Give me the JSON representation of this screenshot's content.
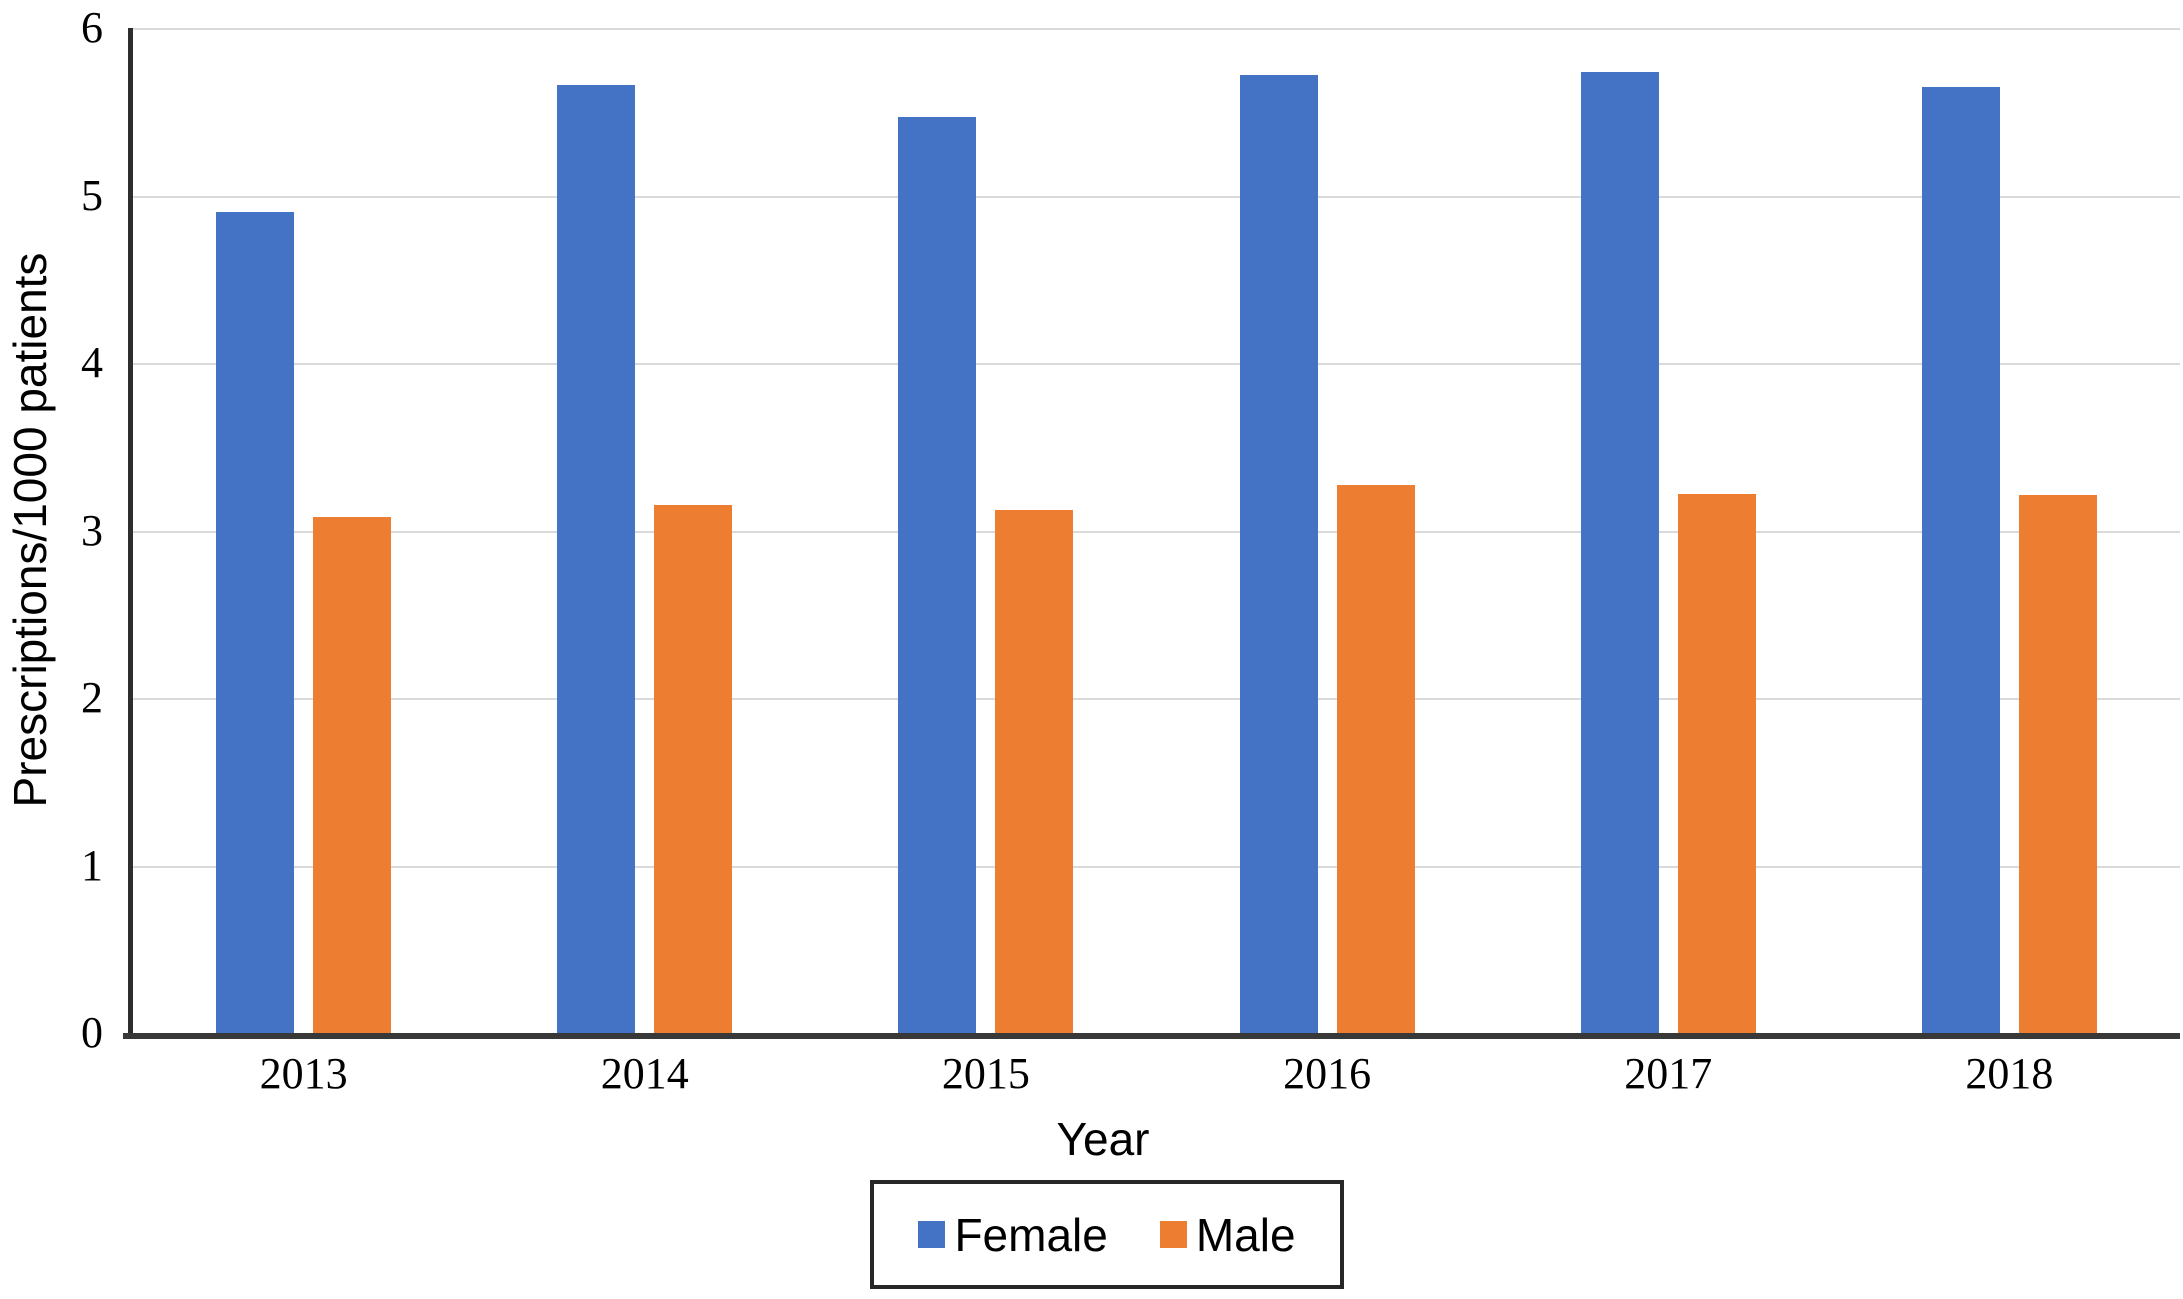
{
  "figure_label": "prescriptions-per-1000-patients-by-sex-and-year",
  "colors": {
    "female_bar": "#4472C4",
    "male_bar": "#ED7D31",
    "axis": "#383838",
    "gridline": "#D9D9D9",
    "legend_border": "#262626",
    "text": "#000000",
    "background": "#FFFFFF"
  },
  "chart_data": {
    "type": "bar",
    "title": "",
    "categories": [
      "2013",
      "2014",
      "2015",
      "2016",
      "2017",
      "2018"
    ],
    "series": [
      {
        "name": "Female",
        "color": "#4472C4",
        "values": [
          4.9,
          5.66,
          5.47,
          5.72,
          5.74,
          5.65
        ]
      },
      {
        "name": "Male",
        "color": "#ED7D31",
        "values": [
          3.08,
          3.15,
          3.12,
          3.27,
          3.22,
          3.21
        ]
      }
    ],
    "xlabel": "Year",
    "ylabel": "Prescriptions/1000 patients",
    "ylim": [
      0,
      6
    ],
    "yticks": [
      0,
      1,
      2,
      3,
      4,
      5,
      6
    ],
    "grid": true,
    "legend_position": "bottom-center",
    "legend_labels": [
      "Female",
      "Male"
    ]
  }
}
